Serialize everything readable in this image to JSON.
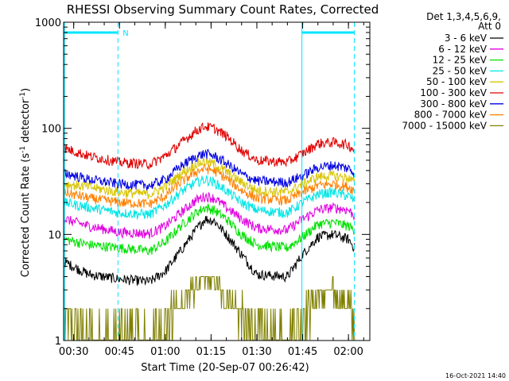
{
  "chart_data": {
    "type": "line",
    "title": "RHESSI Observing Summary Count Rates, Corrected",
    "xlabel": "Start Time (20-Sep-07 00:26:42)",
    "ylabel": "Corrected Count Rate (s⁻¹ detector⁻¹)",
    "ylabel_main": "Corrected Count Rate (s",
    "ylabel_sup1": "-1",
    "ylabel_mid": " detector",
    "ylabel_sup2": "-1",
    "ylabel_end": ")",
    "yscale": "log",
    "xlim": [
      "00:26:42",
      "02:07:00"
    ],
    "ylim": [
      1,
      1000
    ],
    "x_ticks": [
      "00:30",
      "00:45",
      "01:00",
      "01:15",
      "01:30",
      "01:45",
      "02:00"
    ],
    "y_ticks": [
      1,
      10,
      100,
      1000
    ],
    "y_tick_labels": [
      "1",
      "10",
      "100",
      "1000"
    ],
    "legend_header": [
      "Det 1,3,4,5,6,9,",
      "Att 0"
    ],
    "legend_position": "right, outside plot",
    "timestamp": "16-Oct-2021 14:40",
    "annotations": [
      {
        "text": "N",
        "at_time": "00:45",
        "color": "#00e5ff"
      }
    ],
    "markers": {
      "color": "#00e5ff",
      "vertical_lines": [
        {
          "time": "00:27:00",
          "style": "solid"
        },
        {
          "time": "00:44:30",
          "style": "dashed"
        },
        {
          "time": "01:44:45",
          "style": "solid"
        },
        {
          "time": "02:01:55",
          "style": "dashed"
        }
      ],
      "bars_at_1000": [
        [
          "00:27:00",
          "00:44:30"
        ],
        [
          "01:44:45",
          "02:01:55"
        ]
      ]
    },
    "x_points": [
      "00:27",
      "00:35",
      "00:45",
      "00:55",
      "01:00",
      "01:05",
      "01:10",
      "01:13",
      "01:16",
      "01:20",
      "01:25",
      "01:30",
      "01:40",
      "01:45",
      "01:50",
      "01:55",
      "02:00",
      "02:02"
    ],
    "series": [
      {
        "name": "3 - 6 keV",
        "color": "#000000",
        "values": [
          5.5,
          4.2,
          3.8,
          3.6,
          4.5,
          7,
          11,
          14,
          13.5,
          10,
          6.5,
          4.2,
          4.0,
          6.5,
          9.5,
          10,
          9,
          7.5
        ]
      },
      {
        "name": "6 - 12 keV",
        "color": "#e000e0",
        "values": [
          14,
          12,
          10.5,
          10.2,
          12,
          16,
          21,
          23,
          22,
          18,
          14,
          11.5,
          11,
          14,
          17,
          18,
          17,
          15
        ]
      },
      {
        "name": "12 - 25 keV",
        "color": "#00e000",
        "values": [
          9,
          8,
          7.5,
          7,
          8.5,
          12,
          16,
          18,
          17,
          14,
          10,
          8,
          7.5,
          9.5,
          12.5,
          13,
          12,
          11
        ]
      },
      {
        "name": "25 - 50 keV",
        "color": "#00e5e5",
        "values": [
          20,
          18,
          16,
          15.5,
          19,
          25,
          31,
          33,
          31,
          26,
          20,
          17,
          16,
          20,
          24,
          25,
          23,
          21
        ]
      },
      {
        "name": "50 - 100 keV",
        "color": "#d8c400",
        "values": [
          30,
          28,
          25,
          24,
          28,
          37,
          46,
          49,
          46,
          39,
          31,
          26,
          25,
          30,
          35,
          36,
          34,
          31
        ]
      },
      {
        "name": "100 - 300 keV",
        "color": "#e00000",
        "values": [
          65,
          55,
          48,
          46,
          55,
          72,
          95,
          105,
          100,
          85,
          62,
          50,
          48,
          58,
          72,
          74,
          70,
          62
        ]
      },
      {
        "name": "300 - 800 keV",
        "color": "#0000e0",
        "values": [
          38,
          33,
          30,
          29,
          33,
          44,
          54,
          58,
          55,
          47,
          37,
          32,
          31,
          36,
          43,
          45,
          42,
          38
        ]
      },
      {
        "name": "800 - 7000 keV",
        "color": "#ff8000",
        "values": [
          25,
          22,
          20,
          19.5,
          23,
          31,
          39,
          42,
          40,
          34,
          26,
          22,
          21,
          25,
          29,
          30,
          28,
          26
        ]
      },
      {
        "name": "7000 - 15000 keV",
        "color": "#808000",
        "values": [
          1.5,
          1.0,
          1.2,
          1.0,
          1.6,
          2.2,
          3.2,
          3.8,
          3.6,
          2.6,
          1.8,
          1.1,
          1.0,
          1.7,
          2.6,
          2.8,
          2.2,
          1.5
        ]
      }
    ]
  }
}
